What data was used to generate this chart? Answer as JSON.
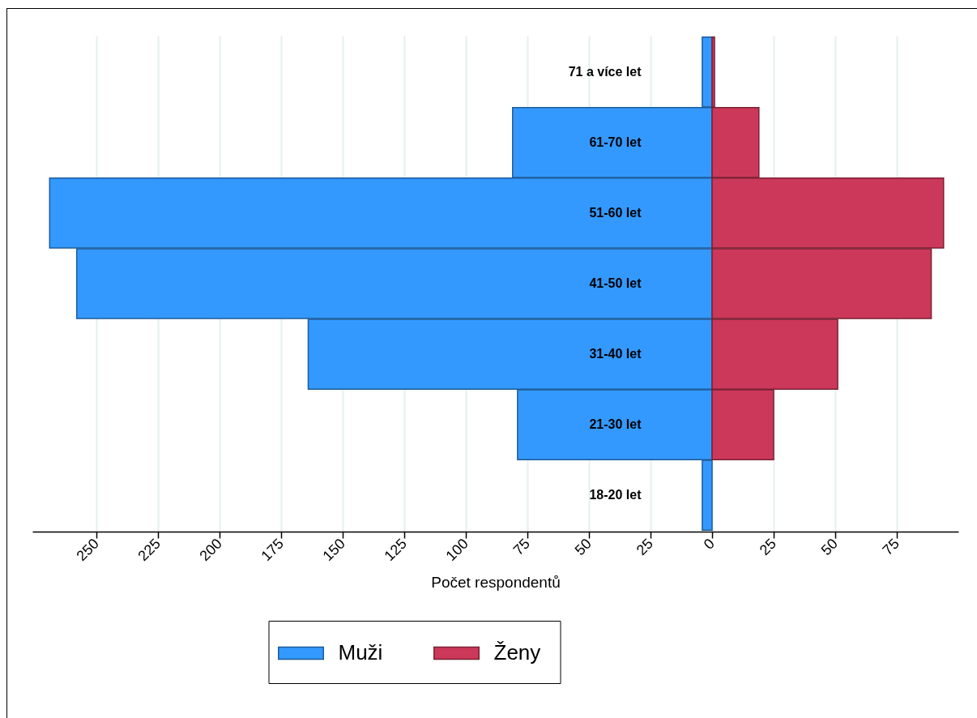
{
  "chart_data": {
    "type": "bar",
    "orientation": "horizontal",
    "xlabel": "Počet respondentů",
    "categories": [
      "71 a více let",
      "61-70 let",
      "51-60 let",
      "41-50 let",
      "31-40 let",
      "21-30 let",
      "18-20 let"
    ],
    "series": [
      {
        "name": "Muži",
        "color": "#3399ff",
        "values": [
          -4,
          -81,
          -269,
          -258,
          -164,
          -79,
          -4
        ]
      },
      {
        "name": "Ženy",
        "color": "#cc3859",
        "values": [
          1,
          19,
          94,
          89,
          51,
          25,
          0
        ]
      }
    ],
    "xlim": [
      -276,
      100
    ],
    "xticks": [
      {
        "value": -250,
        "label": "250"
      },
      {
        "value": -225,
        "label": "225"
      },
      {
        "value": -200,
        "label": "200"
      },
      {
        "value": -175,
        "label": "175"
      },
      {
        "value": -150,
        "label": "150"
      },
      {
        "value": -125,
        "label": "125"
      },
      {
        "value": -100,
        "label": "100"
      },
      {
        "value": -75,
        "label": "75"
      },
      {
        "value": -50,
        "label": "50"
      },
      {
        "value": -25,
        "label": "25"
      },
      0,
      25,
      50,
      75
    ],
    "stacked": true,
    "grid": "x",
    "legend": "bottom"
  }
}
